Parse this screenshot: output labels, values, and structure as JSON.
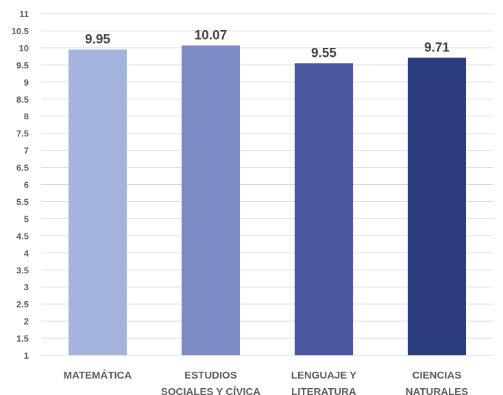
{
  "chart_data": {
    "type": "bar",
    "categories": [
      [
        "MATEMÁTICA"
      ],
      [
        "ESTUDIOS",
        "SOCIALES Y CÍVICA"
      ],
      [
        "LENGUAJE Y",
        "LITERATURA"
      ],
      [
        "CIENCIAS",
        "NATURALES"
      ]
    ],
    "values": [
      9.95,
      10.07,
      9.55,
      9.71
    ],
    "data_labels": [
      "9.95",
      "10.07",
      "9.55",
      "9.71"
    ],
    "bar_colors": [
      "#a5b4dd",
      "#7d8ac4",
      "#4a579f",
      "#2b3d7c"
    ],
    "y_ticks": [
      "1",
      "1.5",
      "2",
      "2.5",
      "3",
      "3.5",
      "4",
      "4.5",
      "5",
      "5.5",
      "6",
      "6.5",
      "7",
      "7.5",
      "8",
      "8.5",
      "9",
      "9.5",
      "10",
      "10.5",
      "11"
    ],
    "ylim": [
      1,
      11
    ],
    "ystep": 0.5,
    "grid": true,
    "legend": "none",
    "title": "",
    "xlabel": "",
    "ylabel": ""
  }
}
